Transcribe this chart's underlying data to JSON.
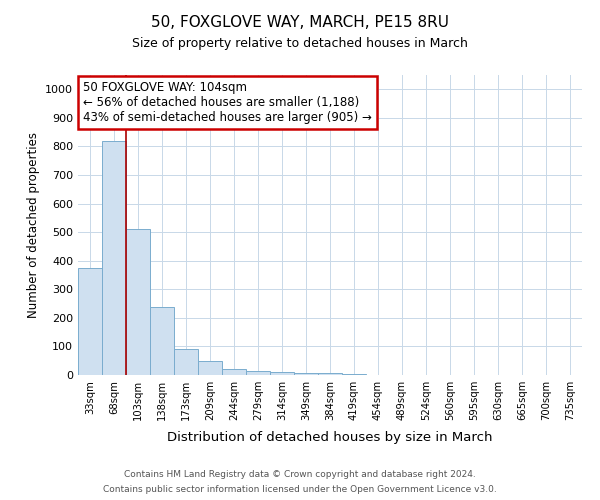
{
  "title1": "50, FOXGLOVE WAY, MARCH, PE15 8RU",
  "title2": "Size of property relative to detached houses in March",
  "xlabel": "Distribution of detached houses by size in March",
  "ylabel": "Number of detached properties",
  "categories": [
    "33sqm",
    "68sqm",
    "103sqm",
    "138sqm",
    "173sqm",
    "209sqm",
    "244sqm",
    "279sqm",
    "314sqm",
    "349sqm",
    "384sqm",
    "419sqm",
    "454sqm",
    "489sqm",
    "524sqm",
    "560sqm",
    "595sqm",
    "630sqm",
    "665sqm",
    "700sqm",
    "735sqm"
  ],
  "values": [
    375,
    820,
    510,
    238,
    90,
    50,
    20,
    15,
    12,
    8,
    8,
    5,
    0,
    0,
    0,
    0,
    0,
    0,
    0,
    0,
    0
  ],
  "bar_color": "#cfe0f0",
  "bar_edge_color": "#7aacce",
  "property_line_x": 2,
  "property_line_color": "#aa0000",
  "ylim": [
    0,
    1050
  ],
  "yticks": [
    0,
    100,
    200,
    300,
    400,
    500,
    600,
    700,
    800,
    900,
    1000
  ],
  "annotation_text": "50 FOXGLOVE WAY: 104sqm\n← 56% of detached houses are smaller (1,188)\n43% of semi-detached houses are larger (905) →",
  "annotation_box_color": "#ffffff",
  "annotation_box_edge_color": "#cc0000",
  "footer_line1": "Contains HM Land Registry data © Crown copyright and database right 2024.",
  "footer_line2": "Contains public sector information licensed under the Open Government Licence v3.0.",
  "background_color": "#ffffff",
  "grid_color": "#c8d8e8"
}
